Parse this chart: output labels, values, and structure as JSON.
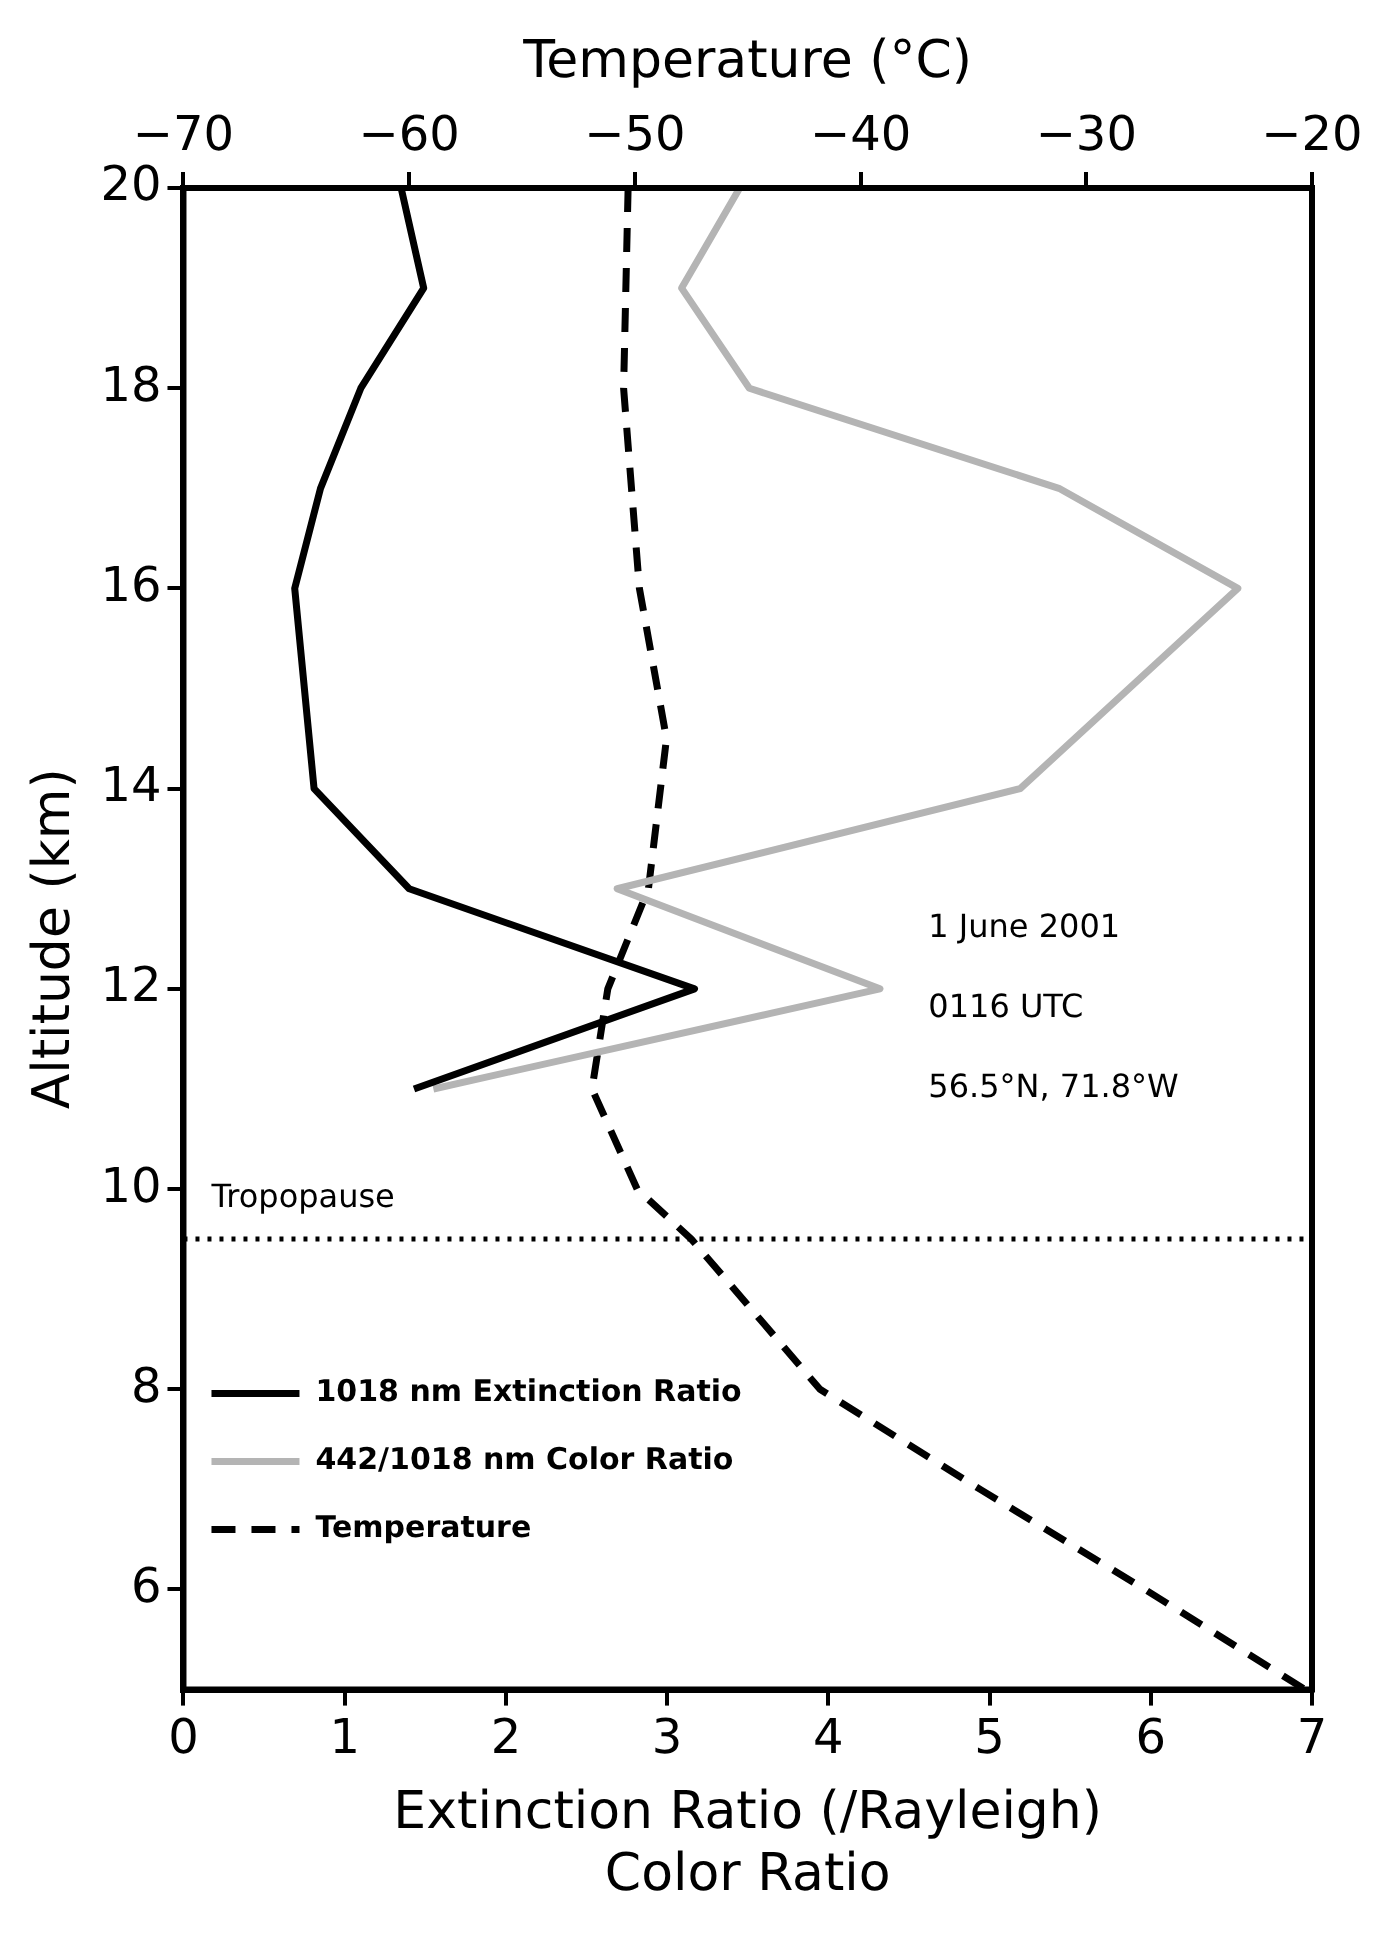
{
  "chart_data": {
    "type": "line",
    "xlabel": "Extinction Ratio (/Rayleigh)\nColor Ratio",
    "ylabel": "Altitude (km)",
    "x2label": "Temperature (°C)",
    "xlim": [
      0,
      7
    ],
    "xticks": [
      0,
      1,
      2,
      3,
      4,
      5,
      6,
      7
    ],
    "x2lim": [
      -70,
      -20
    ],
    "x2ticks": [
      -70,
      -60,
      -50,
      -40,
      -30,
      -20
    ],
    "ylim": [
      5,
      20
    ],
    "yticks": [
      6,
      8,
      10,
      12,
      14,
      16,
      18,
      20
    ],
    "grid": false,
    "legend": "bottom left",
    "marker": "none",
    "series": [
      {
        "name": "1018 nm Extinction Ratio",
        "color": "#000000",
        "line_style": "solid",
        "x": [
          1.35,
          1.49,
          1.1,
          0.85,
          0.69,
          0.81,
          1.4,
          3.17,
          1.43
        ],
        "values": [
          20,
          19,
          18,
          17,
          16,
          14,
          13,
          12,
          11
        ]
      },
      {
        "name": "442/1018 nm Color Ratio",
        "color": "#b4b4b4",
        "line_style": "solid",
        "x": [
          3.45,
          3.09,
          3.51,
          5.43,
          6.54,
          5.19,
          2.69,
          4.32,
          1.55
        ],
        "values": [
          20,
          19,
          18,
          17,
          16,
          14,
          13,
          12,
          11
        ]
      },
      {
        "name": "Temperature",
        "color": "#000000",
        "line_style": "dashed",
        "axis": "x2",
        "x": [
          -50.3,
          -50.5,
          -49.8,
          -48.6,
          -49.4,
          -51.2,
          -51.9,
          -49.9,
          -47.5,
          -41.8,
          -34.7,
          -27.4,
          -20.3
        ],
        "values": [
          20,
          18,
          16,
          14.5,
          13,
          12,
          11,
          10,
          9.5,
          8,
          7,
          6,
          5
        ]
      }
    ],
    "ref_lines": [
      {
        "axis": "y",
        "value": 9.5,
        "label": "Tropopause",
        "line_style": "dotted",
        "color": "#000000"
      }
    ],
    "annotations": [
      "1 June 2001",
      "0116 UTC",
      "56.5°N, 71.8°W"
    ]
  }
}
